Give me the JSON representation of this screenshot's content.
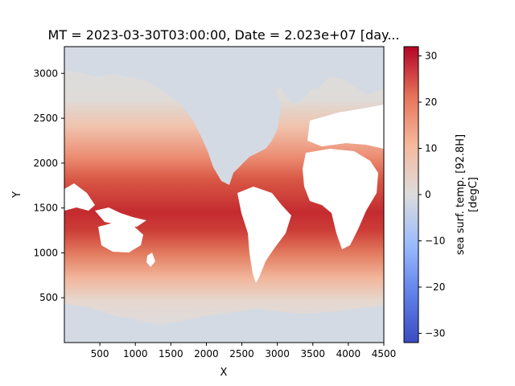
{
  "chart_data": {
    "type": "heatmap",
    "title": "MT = 2023-03-30T03:00:00, Date = 2.023e+07 [day...",
    "xlabel": "X",
    "ylabel": "Y",
    "xlim": [
      0,
      4500
    ],
    "ylim": [
      0,
      3298
    ],
    "x_ticks": [
      500,
      1000,
      1500,
      2000,
      2500,
      3000,
      3500,
      4000,
      4500
    ],
    "y_ticks": [
      500,
      1000,
      1500,
      2000,
      2500,
      3000
    ],
    "colorbar": {
      "label_line1": "sea surf. temp.   [92.8H]",
      "label_line2": "[degC]",
      "range": [
        -32,
        32
      ],
      "ticks": [
        -30,
        -20,
        -10,
        0,
        10,
        20,
        30
      ],
      "colormap": "coolwarm",
      "colors": [
        "#3b4cc0",
        "#7396f5",
        "#b0cbfc",
        "#dddcdc",
        "#f6b89c",
        "#e7745b",
        "#b40426"
      ]
    },
    "land_color": "#d3dae3",
    "description_values": {
      "tropical_band_sst_degC": 30,
      "midlatitude_sst_degC": 15,
      "polar_sst_degC": 0
    }
  }
}
